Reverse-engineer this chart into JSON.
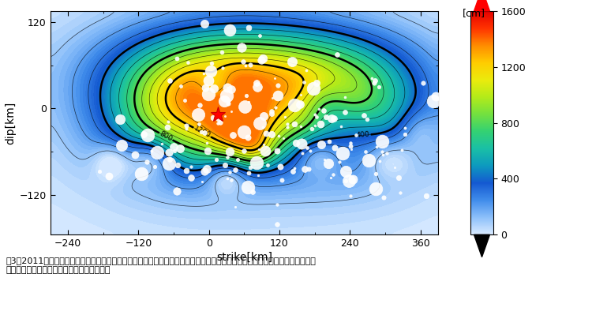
{
  "xlim": [
    -270,
    390
  ],
  "ylim": [
    -175,
    135
  ],
  "xlabel": "strike[km]",
  "ylabel": "dip[km]",
  "xticks": [
    -240,
    -120,
    0,
    120,
    240,
    360
  ],
  "yticks": [
    -120,
    0,
    120
  ],
  "colorbar_label": "[cm]",
  "colorbar_ticks": [
    0,
    400,
    800,
    1200,
    1600
  ],
  "vmin": 0,
  "vmax": 1600,
  "star_x": 15,
  "star_y": -8,
  "caption": "嘦3：2011年東北地方太平洋沖地震（東日本大震災）の余震活動（図中の白丸）をデータとして推定した、本震発生時の変位の\n空間分布。赤星印は気象庁による震源位置。"
}
